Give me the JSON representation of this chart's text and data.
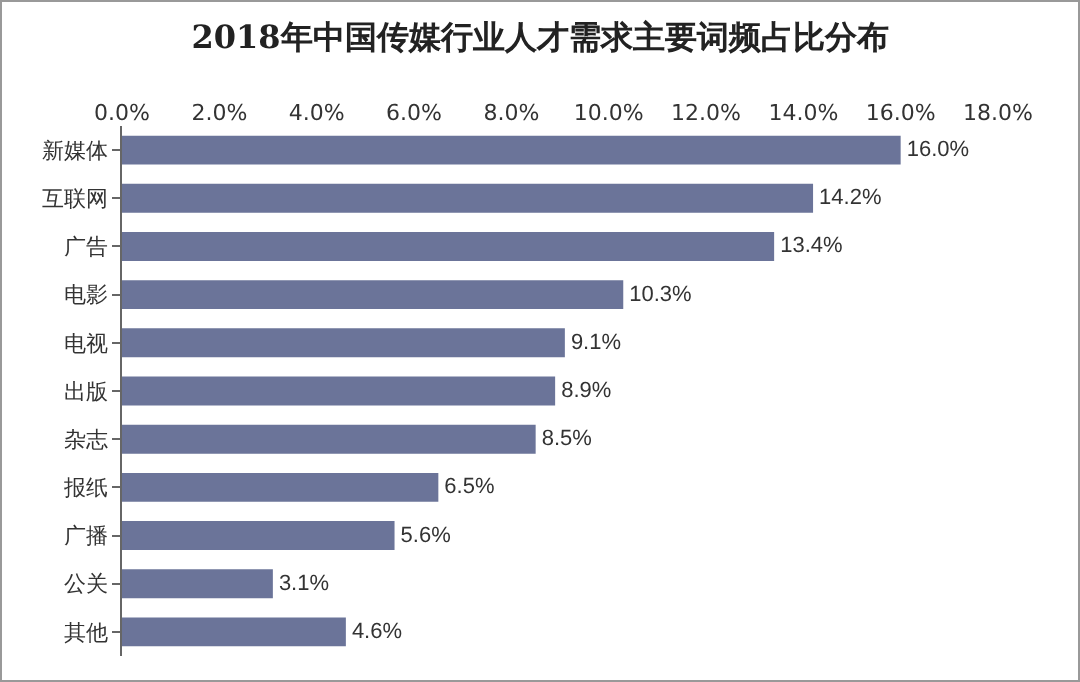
{
  "chart_data": {
    "type": "bar",
    "orientation": "horizontal",
    "title": "2018年中国传媒行业人才需求主要词频占比分布",
    "categories": [
      "新媒体",
      "互联网",
      "广告",
      "电影",
      "电视",
      "出版",
      "杂志",
      "报纸",
      "广播",
      "公关",
      "其他"
    ],
    "values": [
      16.0,
      14.2,
      13.4,
      10.3,
      9.1,
      8.9,
      8.5,
      6.5,
      5.6,
      3.1,
      4.6
    ],
    "value_labels": [
      "16.0%",
      "14.2%",
      "13.4%",
      "10.3%",
      "9.1%",
      "8.9%",
      "8.5%",
      "6.5%",
      "5.6%",
      "3.1%",
      "4.6%"
    ],
    "color": "#6b7499",
    "xlim": [
      0,
      18
    ],
    "xticks": [
      {
        "value": 0,
        "label": "0.0%"
      },
      {
        "value": 2,
        "label": "2.0%"
      },
      {
        "value": 4,
        "label": "4.0%"
      },
      {
        "value": 6,
        "label": "6.0%"
      },
      {
        "value": 8,
        "label": "8.0%"
      },
      {
        "value": 10,
        "label": "10.0%"
      },
      {
        "value": 12,
        "label": "12.0%"
      },
      {
        "value": 14,
        "label": "14.0%"
      },
      {
        "value": 16,
        "label": "16.0%"
      },
      {
        "value": 18,
        "label": "18.0%"
      }
    ],
    "grid": false
  }
}
